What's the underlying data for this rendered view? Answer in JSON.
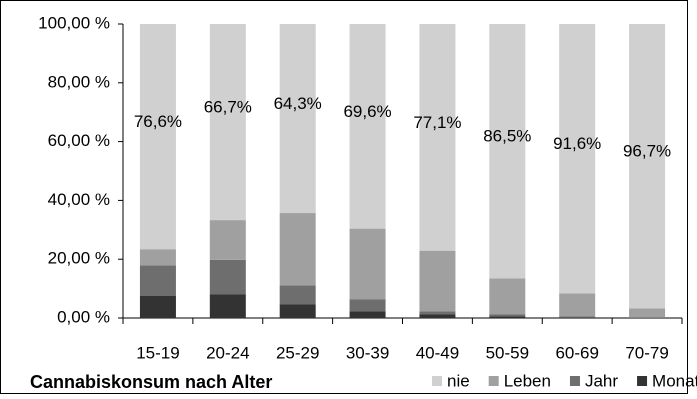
{
  "chart_data": {
    "type": "stacked_bar",
    "title": "Cannabiskonsum nach Alter",
    "categories": [
      "15-19",
      "20-24",
      "25-29",
      "30-39",
      "40-49",
      "50-59",
      "60-69",
      "70-79"
    ],
    "series": [
      {
        "name": "Monat",
        "color": "#333333",
        "values": [
          7.6,
          8.0,
          4.6,
          2.2,
          1.2,
          0.5,
          0.2,
          0.0
        ]
      },
      {
        "name": "Jahr",
        "color": "#6e6e6e",
        "values": [
          10.3,
          11.8,
          6.5,
          4.2,
          1.0,
          0.8,
          0.3,
          0.1
        ]
      },
      {
        "name": "Leben",
        "color": "#a0a0a0",
        "values": [
          5.5,
          13.5,
          24.6,
          24.0,
          20.7,
          12.2,
          7.9,
          3.2
        ]
      },
      {
        "name": "nie",
        "color": "#d0d0d0",
        "values": [
          76.6,
          66.7,
          64.3,
          69.6,
          77.1,
          86.5,
          91.6,
          96.7
        ],
        "value_labels": [
          "76,6%",
          "66,7%",
          "64,3%",
          "69,6%",
          "77,1%",
          "86,5%",
          "91,6%",
          "96,7%"
        ]
      }
    ],
    "ylim": [
      0,
      100
    ],
    "yticks": [
      {
        "value": 0,
        "label": "0,00 %"
      },
      {
        "value": 20,
        "label": "20,00 %"
      },
      {
        "value": 40,
        "label": "40,00 %"
      },
      {
        "value": 60,
        "label": "60,00 %"
      },
      {
        "value": 80,
        "label": "80,00 %"
      },
      {
        "value": 100,
        "label": "100,00 %"
      }
    ],
    "grid": false,
    "legend_order": [
      "nie",
      "Leben",
      "Jahr",
      "Monat"
    ]
  }
}
